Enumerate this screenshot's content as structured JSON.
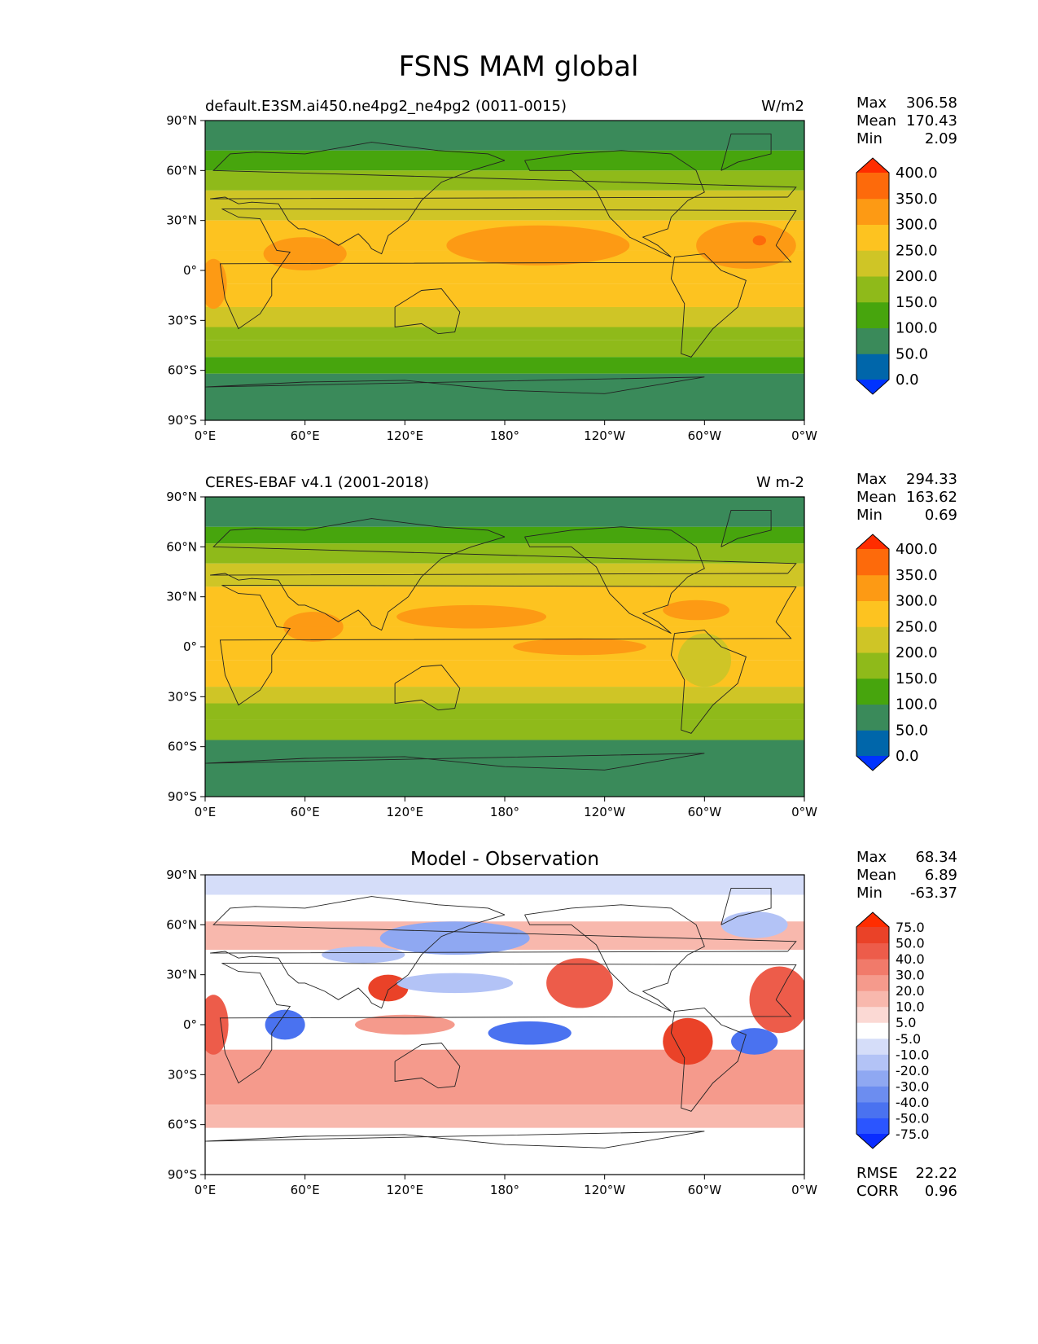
{
  "title": "FSNS MAM global",
  "axes": {
    "lat_ticks": [
      "90°N",
      "60°N",
      "30°N",
      "0°",
      "30°S",
      "60°S",
      "90°S"
    ],
    "lon_ticks": [
      "0°E",
      "60°E",
      "120°E",
      "180°",
      "120°W",
      "60°W",
      "0°W"
    ]
  },
  "colors": {
    "abs_levels": [
      "#0033ff",
      "#0066aa",
      "#3a8a5a",
      "#47a50d",
      "#8fba1a",
      "#cfc526",
      "#fdc320",
      "#fd9a14",
      "#fd6a0b",
      "#ff2d00"
    ],
    "diff_levels": [
      "#0a2cff",
      "#2b55ff",
      "#4a72f0",
      "#6c8df0",
      "#8fa8f2",
      "#b3c3f6",
      "#d5ddf9",
      "#ffffff",
      "#fbd9d4",
      "#f8b8ad",
      "#f59a8c",
      "#f17a6a",
      "#ed5c4a",
      "#ea4228",
      "#ff2d00"
    ]
  },
  "chart_data": [
    {
      "type": "heatmap",
      "title": "default.E3SM.ai450.ne4pg2_ne4pg2 (0011-0015)",
      "units": "W/m2",
      "stats": {
        "max_label": "Max",
        "max": "306.58",
        "mean_label": "Mean",
        "mean": "170.43",
        "min_label": "Min",
        "min": "2.09"
      },
      "colorbar_labels": [
        "400.0",
        "350.0",
        "300.0",
        "250.0",
        "200.0",
        "150.0",
        "100.0",
        "50.0",
        "0.0"
      ],
      "xlim": [
        0,
        360
      ],
      "ylim": [
        -90,
        90
      ],
      "zonal_bands": [
        {
          "lat": [
            72,
            90
          ],
          "value": 40
        },
        {
          "lat": [
            60,
            72
          ],
          "value": 90
        },
        {
          "lat": [
            48,
            60
          ],
          "value": 130
        },
        {
          "lat": [
            30,
            48
          ],
          "value": 170
        },
        {
          "lat": [
            12,
            30
          ],
          "value": 215
        },
        {
          "lat": [
            -8,
            12
          ],
          "value": 235
        },
        {
          "lat": [
            -22,
            -8
          ],
          "value": 210
        },
        {
          "lat": [
            -34,
            -22
          ],
          "value": 175
        },
        {
          "lat": [
            -42,
            -34
          ],
          "value": 135
        },
        {
          "lat": [
            -52,
            -42
          ],
          "value": 115
        },
        {
          "lat": [
            -62,
            -52
          ],
          "value": 85
        },
        {
          "lat": [
            -90,
            -62
          ],
          "value": 40
        }
      ],
      "patches": [
        {
          "lon": 200,
          "lat": 15,
          "rx": 55,
          "ry": 12,
          "value": 265
        },
        {
          "lon": 325,
          "lat": 15,
          "rx": 30,
          "ry": 14,
          "value": 270
        },
        {
          "lon": 333,
          "lat": 18,
          "rx": 4,
          "ry": 3,
          "value": 310
        },
        {
          "lon": 60,
          "lat": 10,
          "rx": 25,
          "ry": 10,
          "value": 255
        },
        {
          "lon": 5,
          "lat": -8,
          "rx": 8,
          "ry": 15,
          "value": 255
        }
      ]
    },
    {
      "type": "heatmap",
      "title": "CERES-EBAF v4.1 (2001-2018)",
      "units": "W m-2",
      "stats": {
        "max_label": "Max",
        "max": "294.33",
        "mean_label": "Mean",
        "mean": "163.62",
        "min_label": "Min",
        "min": "0.69"
      },
      "colorbar_labels": [
        "400.0",
        "350.0",
        "300.0",
        "250.0",
        "200.0",
        "150.0",
        "100.0",
        "50.0",
        "0.0"
      ],
      "xlim": [
        0,
        360
      ],
      "ylim": [
        -90,
        90
      ],
      "zonal_bands": [
        {
          "lat": [
            72,
            90
          ],
          "value": 40
        },
        {
          "lat": [
            62,
            72
          ],
          "value": 90
        },
        {
          "lat": [
            50,
            62
          ],
          "value": 130
        },
        {
          "lat": [
            36,
            50
          ],
          "value": 170
        },
        {
          "lat": [
            12,
            36
          ],
          "value": 215
        },
        {
          "lat": [
            -8,
            12
          ],
          "value": 225
        },
        {
          "lat": [
            -24,
            -8
          ],
          "value": 210
        },
        {
          "lat": [
            -34,
            -24
          ],
          "value": 175
        },
        {
          "lat": [
            -44,
            -34
          ],
          "value": 135
        },
        {
          "lat": [
            -56,
            -44
          ],
          "value": 110
        },
        {
          "lat": [
            -90,
            -56
          ],
          "value": 40
        }
      ],
      "patches": [
        {
          "lon": 160,
          "lat": 18,
          "rx": 45,
          "ry": 7,
          "value": 260
        },
        {
          "lon": 225,
          "lat": 0,
          "rx": 40,
          "ry": 5,
          "value": 255
        },
        {
          "lon": 65,
          "lat": 12,
          "rx": 18,
          "ry": 9,
          "value": 255
        },
        {
          "lon": 295,
          "lat": 22,
          "rx": 20,
          "ry": 6,
          "value": 255
        },
        {
          "lon": 300,
          "lat": -8,
          "rx": 16,
          "ry": 16,
          "value": 180
        }
      ]
    },
    {
      "type": "heatmap",
      "title": "Model - Observation",
      "units": "",
      "stats": {
        "max_label": "Max",
        "max": "68.34",
        "mean_label": "Mean",
        "mean": "6.89",
        "min_label": "Min",
        "min": "-63.37"
      },
      "metrics": {
        "rmse_label": "RMSE",
        "rmse": "22.22",
        "corr_label": "CORR",
        "corr": "0.96"
      },
      "colorbar_labels": [
        "75.0",
        "50.0",
        "40.0",
        "30.0",
        "20.0",
        "10.0",
        "5.0",
        "-5.0",
        "-10.0",
        "-20.0",
        "-30.0",
        "-40.0",
        "-50.0",
        "-75.0"
      ],
      "xlim": [
        0,
        360
      ],
      "ylim": [
        -90,
        90
      ],
      "zonal_bands": [
        {
          "lat": [
            78,
            90
          ],
          "value": -8
        },
        {
          "lat": [
            62,
            78
          ],
          "value": 0
        },
        {
          "lat": [
            45,
            62
          ],
          "value": 12
        },
        {
          "lat": [
            -15,
            45
          ],
          "value": 0
        },
        {
          "lat": [
            -48,
            -15
          ],
          "value": 22
        },
        {
          "lat": [
            -62,
            -48
          ],
          "value": 12
        },
        {
          "lat": [
            -90,
            -62
          ],
          "value": 0
        }
      ],
      "patches": [
        {
          "lon": 5,
          "lat": 0,
          "rx": 9,
          "ry": 18,
          "value": 45
        },
        {
          "lon": 48,
          "lat": 0,
          "rx": 12,
          "ry": 9,
          "value": -45
        },
        {
          "lon": 110,
          "lat": 22,
          "rx": 12,
          "ry": 8,
          "value": 55
        },
        {
          "lon": 150,
          "lat": 52,
          "rx": 45,
          "ry": 10,
          "value": -22
        },
        {
          "lon": 150,
          "lat": 25,
          "rx": 35,
          "ry": 6,
          "value": -18
        },
        {
          "lon": 195,
          "lat": -5,
          "rx": 25,
          "ry": 7,
          "value": -45
        },
        {
          "lon": 225,
          "lat": 25,
          "rx": 20,
          "ry": 15,
          "value": 42
        },
        {
          "lon": 290,
          "lat": -10,
          "rx": 15,
          "ry": 14,
          "value": 52
        },
        {
          "lon": 330,
          "lat": -10,
          "rx": 14,
          "ry": 8,
          "value": -42
        },
        {
          "lon": 345,
          "lat": 15,
          "rx": 18,
          "ry": 20,
          "value": 42
        },
        {
          "lon": 120,
          "lat": 0,
          "rx": 30,
          "ry": 6,
          "value": 25
        },
        {
          "lon": 95,
          "lat": 42,
          "rx": 25,
          "ry": 5,
          "value": -20
        },
        {
          "lon": 330,
          "lat": 60,
          "rx": 20,
          "ry": 8,
          "value": -15
        }
      ]
    }
  ]
}
